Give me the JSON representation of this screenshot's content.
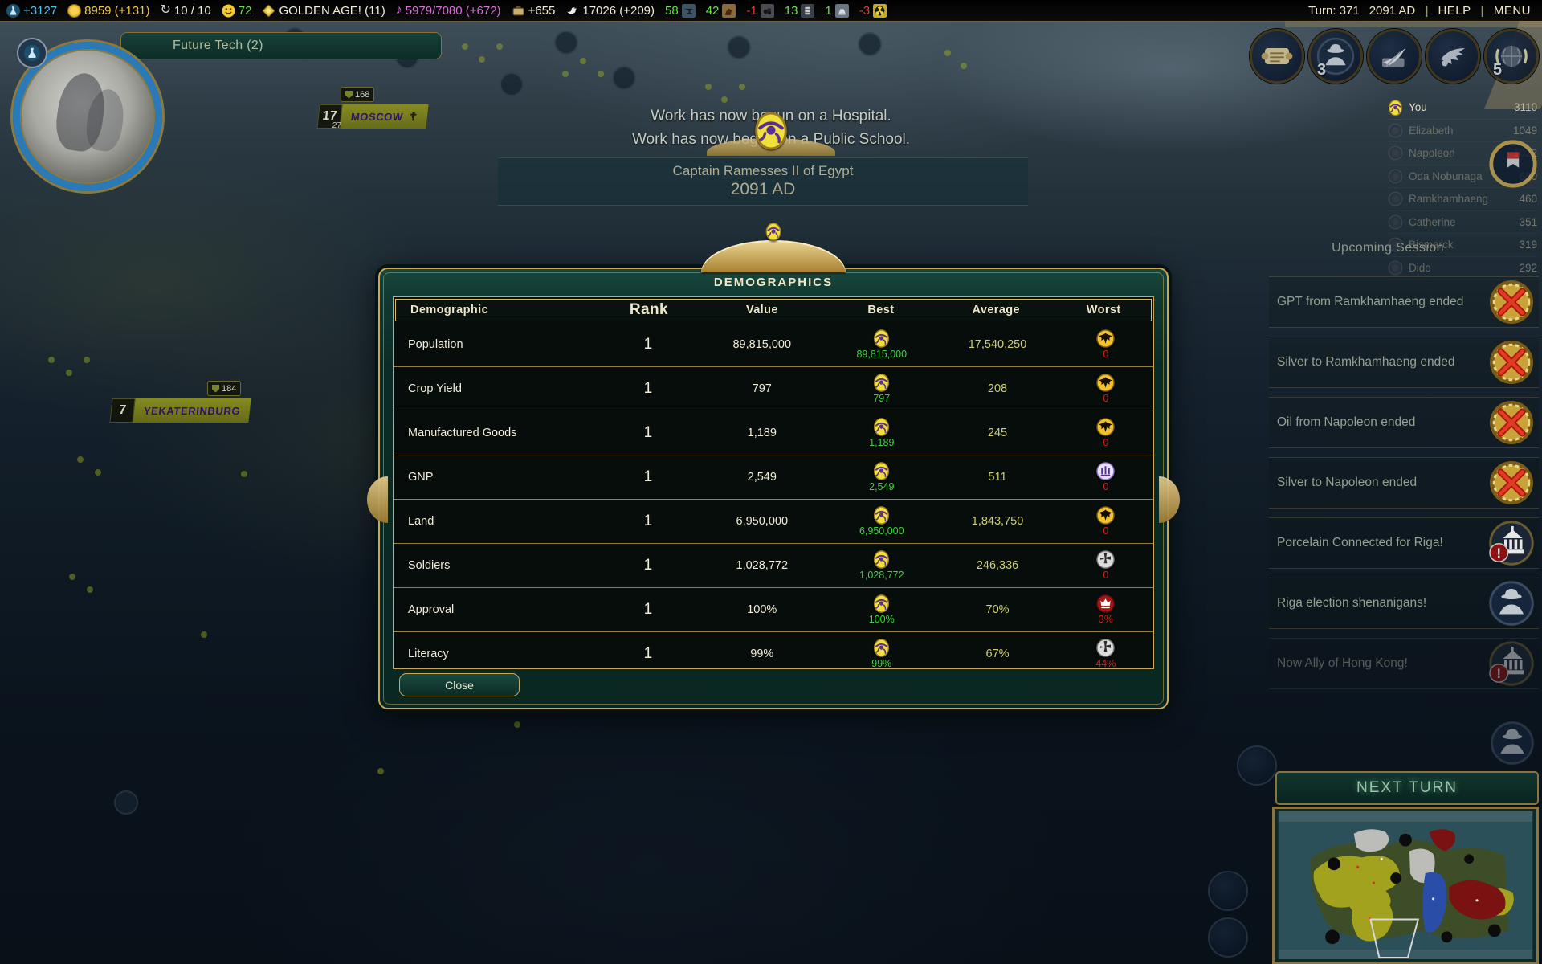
{
  "colors": {
    "accent_gold": "#c9a855",
    "dialog_green": "#0b2c26",
    "best_green": "#3fd23f",
    "worst_red": "#cc241a",
    "average_yellow": "#cfcf6e",
    "science_blue": "#4ec4ee",
    "gold_yellow": "#f0c84a",
    "culture_magenta": "#df6ede",
    "happiness_green": "#66e24c"
  },
  "top_bar": {
    "science": "+3127",
    "gold": "8959 (+131)",
    "supply": "10 / 10",
    "happiness": "72",
    "golden_age": "GOLDEN AGE! (11)",
    "culture": "5979/7080 (+672)",
    "tourism": "+655",
    "faith": "17026 (+209)",
    "resources": [
      {
        "icon": "iron",
        "value": "58",
        "variant": "ok"
      },
      {
        "icon": "horses",
        "value": "42",
        "variant": "ok"
      },
      {
        "icon": "coal",
        "value": "-1",
        "variant": "deficit"
      },
      {
        "icon": "oil",
        "value": "13",
        "variant": "ok"
      },
      {
        "icon": "aluminum",
        "value": "1",
        "variant": "ok"
      },
      {
        "icon": "uranium",
        "value": "-3",
        "variant": "deficit"
      }
    ],
    "turn_label": "Turn: 371",
    "date_label": "2091 AD",
    "sep": "|",
    "help_label": "HELP",
    "menu_label": "MENU"
  },
  "map": {
    "tech_banner": "Future Tech (2)",
    "messages": [
      "Work has now begun on a Hospital.",
      "Work has now begun on a Public School."
    ],
    "event_banner": {
      "line1": "Captain Ramesses II of Egypt",
      "line2": "2091 AD"
    },
    "cities": {
      "moscow": {
        "name": "MOSCOW",
        "population": "17",
        "garrison": "27",
        "defense": "168",
        "religion": "☦"
      },
      "yekaterinburg": {
        "name": "YEKATERINBURG",
        "population": "7",
        "defense": "184"
      }
    }
  },
  "dialog": {
    "title": "DEMOGRAPHICS",
    "close_label": "Close",
    "columns": [
      "Demographic",
      "Rank",
      "Value",
      "Best",
      "Average",
      "Worst"
    ],
    "rows": [
      {
        "name": "Population",
        "rank": "1",
        "value": "89,815,000",
        "best_icon": "egypt",
        "best_value": "89,815,000",
        "average": "17,540,250",
        "worst_icon": "eagle",
        "worst_value": "0"
      },
      {
        "name": "Crop Yield",
        "rank": "1",
        "value": "797",
        "best_icon": "egypt",
        "best_value": "797",
        "average": "208",
        "worst_icon": "eagle",
        "worst_value": "0"
      },
      {
        "name": "Manufactured Goods",
        "rank": "1",
        "value": "1,189",
        "best_icon": "egypt",
        "best_value": "1,189",
        "average": "245",
        "worst_icon": "eagle",
        "worst_value": "0"
      },
      {
        "name": "GNP",
        "rank": "1",
        "value": "2,549",
        "best_icon": "egypt",
        "best_value": "2,549",
        "average": "511",
        "worst_icon": "purple",
        "worst_value": "0"
      },
      {
        "name": "Land",
        "rank": "1",
        "value": "6,950,000",
        "best_icon": "egypt",
        "best_value": "6,950,000",
        "average": "1,843,750",
        "worst_icon": "eagle",
        "worst_value": "0"
      },
      {
        "name": "Soldiers",
        "rank": "1",
        "value": "1,028,772",
        "best_icon": "egypt",
        "best_value": "1,028,772",
        "average": "246,336",
        "worst_icon": "cross",
        "worst_value": "0"
      },
      {
        "name": "Approval",
        "rank": "1",
        "value": "100%",
        "best_icon": "egypt",
        "best_value": "100%",
        "average": "70%",
        "worst_icon": "crown",
        "worst_value": "3%"
      },
      {
        "name": "Literacy",
        "rank": "1",
        "value": "99%",
        "best_icon": "egypt",
        "best_value": "99%",
        "average": "67%",
        "worst_icon": "cross",
        "worst_value": "44%"
      }
    ]
  },
  "scoreboard": [
    {
      "icon": "egypt",
      "name": "You",
      "score": "3110",
      "variant": "you"
    },
    {
      "icon": "civ",
      "name": "Elizabeth",
      "score": "1049",
      "variant": "other"
    },
    {
      "icon": "civ",
      "name": "Napoleon",
      "score": "1022",
      "variant": "other"
    },
    {
      "icon": "civ",
      "name": "Oda Nobunaga",
      "score": "680",
      "variant": "other"
    },
    {
      "icon": "civ",
      "name": "Ramkhamhaeng",
      "score": "460",
      "variant": "other"
    },
    {
      "icon": "civ",
      "name": "Catherine",
      "score": "351",
      "variant": "other"
    },
    {
      "icon": "civ",
      "name": "Bismarck",
      "score": "319",
      "variant": "other"
    },
    {
      "icon": "civ",
      "name": "Dido",
      "score": "292",
      "variant": "other"
    }
  ],
  "notifications": {
    "header": "Upcoming Session",
    "items": [
      {
        "text": "GPT from Ramkhamhaeng ended",
        "icon": "deal-ended",
        "variant": "normal"
      },
      {
        "text": "Silver to Ramkhamhaeng ended",
        "icon": "deal-ended",
        "variant": "normal"
      },
      {
        "text": "Oil from Napoleon ended",
        "icon": "deal-ended",
        "variant": "normal"
      },
      {
        "text": "Silver to Napoleon ended",
        "icon": "deal-ended",
        "variant": "normal"
      },
      {
        "text": "Porcelain Connected for Riga!",
        "icon": "city-state-alert",
        "variant": "normal"
      },
      {
        "text": "Riga election shenanigans!",
        "icon": "spy",
        "variant": "normal"
      },
      {
        "text": "Now Ally of Hong Kong!",
        "icon": "city-state-alert",
        "variant": "dim"
      }
    ]
  },
  "top_right_buttons": [
    {
      "icon": "scroll",
      "badge": ""
    },
    {
      "icon": "spy",
      "badge": "3"
    },
    {
      "icon": "quill",
      "badge": ""
    },
    {
      "icon": "culture",
      "badge": ""
    },
    {
      "icon": "laurel",
      "badge": "5"
    }
  ],
  "next_turn": {
    "label": "NEXT TURN"
  }
}
